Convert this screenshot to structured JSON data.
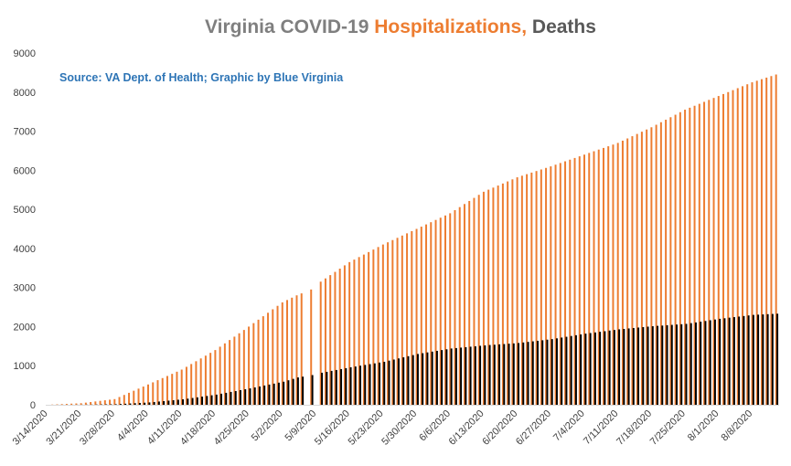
{
  "chart_data": {
    "type": "bar",
    "title_parts": [
      {
        "text": "Virginia COVID-19 ",
        "color": "#7f7f7f"
      },
      {
        "text": "Hospitalizations,",
        "color": "#ed7d31"
      },
      {
        "text": " Deaths",
        "color": "#595959"
      }
    ],
    "annotation": "Source: VA Dept. of Health; Graphic by Blue Virginia",
    "annotation_color": "#2e75b6",
    "start_date": "2020-03-14",
    "end_date": "2020-08-13",
    "x_tick_labels": [
      "3/14/2020",
      "3/21/2020",
      "3/28/2020",
      "4/4/2020",
      "4/11/2020",
      "4/18/2020",
      "4/25/2020",
      "5/2/2020",
      "5/9/2020",
      "5/16/2020",
      "5/23/2020",
      "5/30/2020",
      "6/6/2020",
      "6/13/2020",
      "6/20/2020",
      "6/27/2020",
      "7/4/2020",
      "7/11/2020",
      "7/18/2020",
      "7/25/2020",
      "8/1/2020",
      "8/8/2020"
    ],
    "ylim": [
      0,
      9000
    ],
    "y_ticks": [
      0,
      1000,
      2000,
      3000,
      4000,
      5000,
      6000,
      7000,
      8000,
      9000
    ],
    "grid": false,
    "series": [
      {
        "color": "#ed7d31",
        "points": [
          [
            "2020-03-14",
            0
          ],
          [
            "2020-03-21",
            40
          ],
          [
            "2020-03-28",
            145
          ],
          [
            "2020-04-04",
            520
          ],
          [
            "2020-04-11",
            900
          ],
          [
            "2020-04-18",
            1400
          ],
          [
            "2020-04-25",
            2000
          ],
          [
            "2020-05-02",
            2620
          ],
          [
            "2020-05-05",
            2800
          ],
          [
            "2020-05-07",
            0
          ],
          [
            "2020-05-08",
            2950
          ],
          [
            "2020-05-09",
            0
          ],
          [
            "2020-05-10",
            3150
          ],
          [
            "2020-05-16",
            3650
          ],
          [
            "2020-05-23",
            4100
          ],
          [
            "2020-05-30",
            4500
          ],
          [
            "2020-06-06",
            4900
          ],
          [
            "2020-06-13",
            5450
          ],
          [
            "2020-06-20",
            5820
          ],
          [
            "2020-06-27",
            6100
          ],
          [
            "2020-07-04",
            6400
          ],
          [
            "2020-07-11",
            6700
          ],
          [
            "2020-07-18",
            7100
          ],
          [
            "2020-07-25",
            7550
          ],
          [
            "2020-08-01",
            7900
          ],
          [
            "2020-08-08",
            8250
          ],
          [
            "2020-08-13",
            8450
          ]
        ]
      },
      {
        "color": "#000000",
        "points": [
          [
            "2020-03-14",
            0
          ],
          [
            "2020-03-21",
            2
          ],
          [
            "2020-03-28",
            14
          ],
          [
            "2020-04-04",
            60
          ],
          [
            "2020-04-11",
            140
          ],
          [
            "2020-04-18",
            260
          ],
          [
            "2020-04-25",
            420
          ],
          [
            "2020-05-02",
            590
          ],
          [
            "2020-05-05",
            700
          ],
          [
            "2020-05-07",
            0
          ],
          [
            "2020-05-08",
            760
          ],
          [
            "2020-05-09",
            0
          ],
          [
            "2020-05-10",
            820
          ],
          [
            "2020-05-16",
            960
          ],
          [
            "2020-05-23",
            1100
          ],
          [
            "2020-05-30",
            1300
          ],
          [
            "2020-06-06",
            1440
          ],
          [
            "2020-06-13",
            1520
          ],
          [
            "2020-06-20",
            1580
          ],
          [
            "2020-06-27",
            1680
          ],
          [
            "2020-07-04",
            1820
          ],
          [
            "2020-07-11",
            1930
          ],
          [
            "2020-07-18",
            2010
          ],
          [
            "2020-07-25",
            2070
          ],
          [
            "2020-08-01",
            2200
          ],
          [
            "2020-08-08",
            2300
          ],
          [
            "2020-08-13",
            2330
          ]
        ]
      }
    ]
  }
}
